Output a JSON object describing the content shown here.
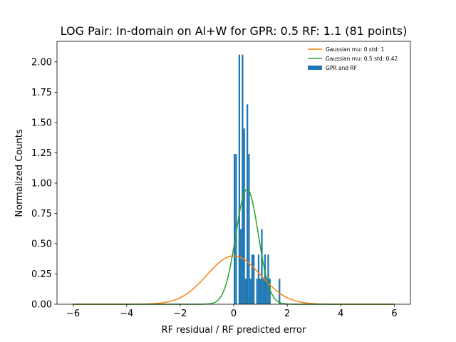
{
  "chart_data": {
    "type": "bar",
    "title": "LOG Pair: In-domain on Al+W for GPR: 0.5 RF: 1.1 (81 points)",
    "xlabel": "RF residual / RF predicted error",
    "ylabel": "Normalized Counts",
    "xlim": [
      -6.6,
      6.6
    ],
    "ylim": [
      0,
      2.17
    ],
    "xticks": [
      -6,
      -4,
      -2,
      0,
      2,
      4,
      6
    ],
    "xtick_labels": [
      "−6",
      "−4",
      "−2",
      "0",
      "2",
      "4",
      "6"
    ],
    "yticks": [
      0,
      0.25,
      0.5,
      0.75,
      1.0,
      1.25,
      1.5,
      1.75,
      2.0
    ],
    "ytick_labels": [
      "0.00",
      "0.25",
      "0.50",
      "0.75",
      "1.00",
      "1.25",
      "1.50",
      "1.75",
      "2.00"
    ],
    "legend_position": "top-right",
    "histogram": {
      "name": "GPR and RF",
      "color": "#1f77b4",
      "bin_width": 0.0605,
      "bins": [
        {
          "x": 0.0,
          "y": 1.24
        },
        {
          "x": 0.06,
          "y": 1.24
        },
        {
          "x": 0.12,
          "y": 0.0
        },
        {
          "x": 0.18,
          "y": 2.06
        },
        {
          "x": 0.24,
          "y": 0.62
        },
        {
          "x": 0.3,
          "y": 2.06
        },
        {
          "x": 0.36,
          "y": 1.45
        },
        {
          "x": 0.42,
          "y": 0.21
        },
        {
          "x": 0.48,
          "y": 1.65
        },
        {
          "x": 0.54,
          "y": 1.24
        },
        {
          "x": 0.6,
          "y": 0.21
        },
        {
          "x": 0.66,
          "y": 0.41
        },
        {
          "x": 0.72,
          "y": 0.41
        },
        {
          "x": 0.78,
          "y": 0.0
        },
        {
          "x": 0.84,
          "y": 0.21
        },
        {
          "x": 0.9,
          "y": 0.41
        },
        {
          "x": 0.96,
          "y": 0.21
        },
        {
          "x": 1.02,
          "y": 0.62
        },
        {
          "x": 1.08,
          "y": 0.21
        },
        {
          "x": 1.14,
          "y": 0.41
        },
        {
          "x": 1.2,
          "y": 0.21
        },
        {
          "x": 1.26,
          "y": 0.41
        },
        {
          "x": 1.32,
          "y": 0.21
        },
        {
          "x": 1.38,
          "y": 0.0
        },
        {
          "x": 1.44,
          "y": 0.0
        },
        {
          "x": 1.5,
          "y": 0.0
        },
        {
          "x": 1.56,
          "y": 0.0
        },
        {
          "x": 1.62,
          "y": 0.0
        },
        {
          "x": 1.68,
          "y": 0.21
        }
      ]
    },
    "series": [
      {
        "name": "Gaussian mu: 0 std: 1",
        "mu": 0,
        "std": 1,
        "color": "#ff7f0e"
      },
      {
        "name": "Gaussian mu: 0.5 std: 0.42",
        "mu": 0.5,
        "std": 0.42,
        "color": "#2ca02c"
      }
    ],
    "curve_range": [
      -6,
      6
    ]
  }
}
